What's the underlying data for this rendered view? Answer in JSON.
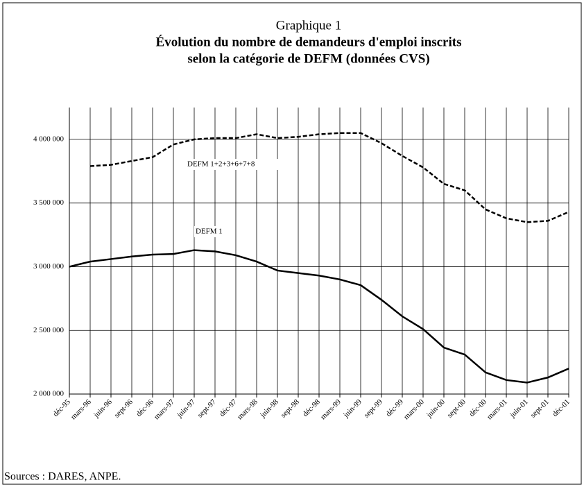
{
  "chart_data": {
    "type": "line",
    "title": "Graphique 1",
    "subtitle": [
      "Évolution du nombre de demandeurs d'emploi inscrits",
      "selon la catégorie de DEFM (données CVS)"
    ],
    "source": "Sources : DARES, ANPE.",
    "categories": [
      "déc-95",
      "mars-96",
      "juin-96",
      "sept-96",
      "déc-96",
      "mars-97",
      "juin-97",
      "sept-97",
      "déc-97",
      "mars-98",
      "juin-98",
      "sept-98",
      "déc-98",
      "mars-99",
      "juin-99",
      "sept-99",
      "déc-99",
      "mars-00",
      "juin-00",
      "sept-00",
      "déc-00",
      "mars-01",
      "juin-01",
      "sept-01",
      "déc-01"
    ],
    "series": [
      {
        "name": "DEFM 1+2+3+6+7+8",
        "color": "#000000",
        "dashed": true,
        "values": [
          null,
          3790000,
          3800000,
          3830000,
          3860000,
          3960000,
          4000000,
          4010000,
          4010000,
          4040000,
          4010000,
          4020000,
          4040000,
          4050000,
          4050000,
          3970000,
          3870000,
          3780000,
          3650000,
          3600000,
          3450000,
          3380000,
          3350000,
          3360000,
          3430000
        ]
      },
      {
        "name": "DEFM 1",
        "color": "#000000",
        "dashed": false,
        "values": [
          3000000,
          3040000,
          3060000,
          3080000,
          3095000,
          3100000,
          3130000,
          3120000,
          3090000,
          3040000,
          2970000,
          2950000,
          2930000,
          2900000,
          2855000,
          2740000,
          2610000,
          2510000,
          2365000,
          2310000,
          2170000,
          2110000,
          2090000,
          2130000,
          2200000
        ]
      }
    ],
    "ylim": [
      2000000,
      4250000
    ],
    "yticks": [
      {
        "value": 2000000,
        "label": "2 000 000"
      },
      {
        "value": 2500000,
        "label": "2 500 000"
      },
      {
        "value": 3000000,
        "label": "3 000 000"
      },
      {
        "value": 3500000,
        "label": "3 500 000"
      },
      {
        "value": 4000000,
        "label": "4 000 000"
      }
    ],
    "grid": true
  }
}
